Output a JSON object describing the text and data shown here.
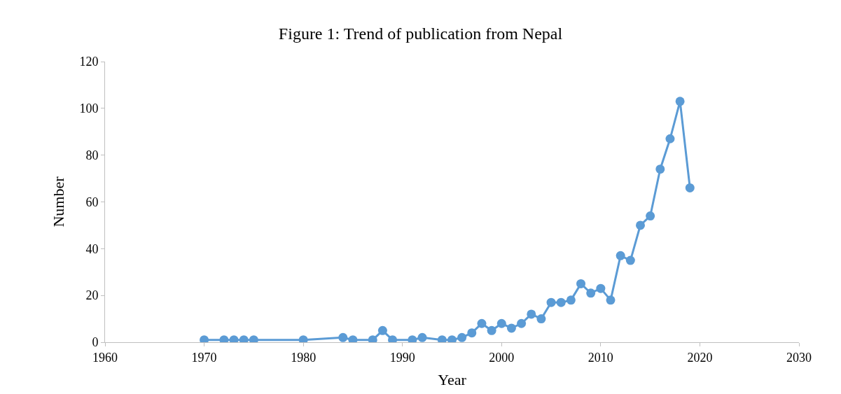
{
  "chart_data": {
    "type": "line",
    "title": "Figure 1: Trend of publication from Nepal",
    "xlabel": "Year",
    "ylabel": "Number",
    "x": [
      1970,
      1972,
      1973,
      1974,
      1975,
      1980,
      1984,
      1985,
      1987,
      1988,
      1989,
      1991,
      1992,
      1994,
      1995,
      1996,
      1997,
      1998,
      1999,
      2000,
      2001,
      2002,
      2003,
      2004,
      2005,
      2006,
      2007,
      2008,
      2009,
      2010,
      2011,
      2012,
      2013,
      2014,
      2015,
      2016,
      2017,
      2018,
      2019
    ],
    "series": [
      {
        "color": "#5b9bd5",
        "values": [
          1,
          1,
          1,
          1,
          1,
          1,
          2,
          1,
          1,
          5,
          1,
          1,
          2,
          1,
          1,
          2,
          4,
          8,
          5,
          8,
          6,
          8,
          12,
          10,
          17,
          17,
          18,
          25,
          21,
          23,
          18,
          37,
          35,
          50,
          54,
          74,
          87,
          103,
          66
        ]
      }
    ],
    "xlim": [
      1960,
      2030
    ],
    "xticks": [
      1960,
      1970,
      1980,
      1990,
      2000,
      2010,
      2020,
      2030
    ],
    "ylim": [
      0,
      120
    ],
    "yticks": [
      0,
      20,
      40,
      60,
      80,
      100,
      120
    ],
    "marker": "circle",
    "line_style": "solid"
  }
}
